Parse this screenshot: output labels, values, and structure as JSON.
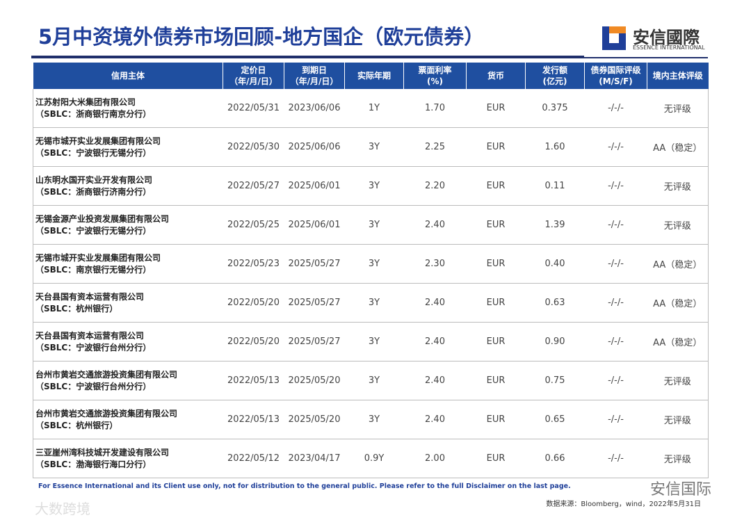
{
  "header": {
    "title": "5月中资境外债券市场回顾-地方国企（欧元债券）",
    "logo_cn": "安信國際",
    "logo_en": "ESSENCE INTERNATIONAL"
  },
  "table": {
    "headers": [
      [
        "信用主体"
      ],
      [
        "定价日",
        "（年/月/日）"
      ],
      [
        "到期日",
        "（年/月/日）"
      ],
      [
        "实际年期"
      ],
      [
        "票面利率",
        "(%)"
      ],
      [
        "货币"
      ],
      [
        "发行额",
        "(亿元)"
      ],
      [
        "债券国际评级",
        "(M/S/F)"
      ],
      [
        "境内主体评级"
      ]
    ],
    "rows": [
      [
        [
          "江苏射阳大米集团有限公司",
          "（SBLC：浙商银行南京分行）"
        ],
        "2022/05/31",
        "2023/06/06",
        "1Y",
        "1.70",
        "EUR",
        "0.375",
        "-/-/-",
        "无评级"
      ],
      [
        [
          "无锡市城开实业发展集团有限公司",
          "（SBLC：宁波银行无锡分行）"
        ],
        "2022/05/30",
        "2025/06/06",
        "3Y",
        "2.25",
        "EUR",
        "1.60",
        "-/-/-",
        "AA（稳定）"
      ],
      [
        [
          "山东明水国开实业开发有限公司",
          "（SBLC：浙商银行济南分行）"
        ],
        "2022/05/27",
        "2025/06/01",
        "3Y",
        "2.20",
        "EUR",
        "0.11",
        "-/-/-",
        "无评级"
      ],
      [
        [
          "无锡金源产业投资发展集团有限公司",
          "（SBLC：宁波银行无锡分行）"
        ],
        "2022/05/25",
        "2025/06/01",
        "3Y",
        "2.40",
        "EUR",
        "1.39",
        "-/-/-",
        "无评级"
      ],
      [
        [
          "无锡市城开实业发展集团有限公司",
          "（SBLC：南京银行无锡分行）"
        ],
        "2022/05/23",
        "2025/05/27",
        "3Y",
        "2.30",
        "EUR",
        "0.40",
        "-/-/-",
        "AA（稳定）"
      ],
      [
        [
          "天台县国有资本运营有限公司",
          "（SBLC：杭州银行）"
        ],
        "2022/05/20",
        "2025/05/27",
        "3Y",
        "2.40",
        "EUR",
        "0.63",
        "-/-/-",
        "AA（稳定）"
      ],
      [
        [
          "天台县国有资本运营有限公司",
          "（SBLC：宁波银行台州分行）"
        ],
        "2022/05/20",
        "2025/05/27",
        "3Y",
        "2.40",
        "EUR",
        "0.90",
        "-/-/-",
        "AA（稳定）"
      ],
      [
        [
          "台州市黄岩交通旅游投资集团有限公司",
          "（SBLC：宁波银行台州分行）"
        ],
        "2022/05/13",
        "2025/05/20",
        "3Y",
        "2.40",
        "EUR",
        "0.75",
        "-/-/-",
        "无评级"
      ],
      [
        [
          "台州市黄岩交通旅游投资集团有限公司",
          "（SBLC：杭州银行）"
        ],
        "2022/05/13",
        "2025/05/20",
        "3Y",
        "2.40",
        "EUR",
        "0.65",
        "-/-/-",
        "无评级"
      ],
      [
        [
          "三亚崖州湾科技城开发建设有限公司",
          "（SBLC：渤海银行海口分行）"
        ],
        "2022/05/12",
        "2023/04/17",
        "0.9Y",
        "2.00",
        "EUR",
        "0.66",
        "-/-/-",
        "无评级"
      ]
    ]
  },
  "footer": {
    "disclaimer": "For Essence International and its Client use only, not for distribution to the general public. Please refer to the full Disclaimer on the last page.",
    "source": "数据来源：Bloomberg，wind，2022年5月31日",
    "watermark_right": "安信国际",
    "watermark_left": "大数跨境"
  }
}
